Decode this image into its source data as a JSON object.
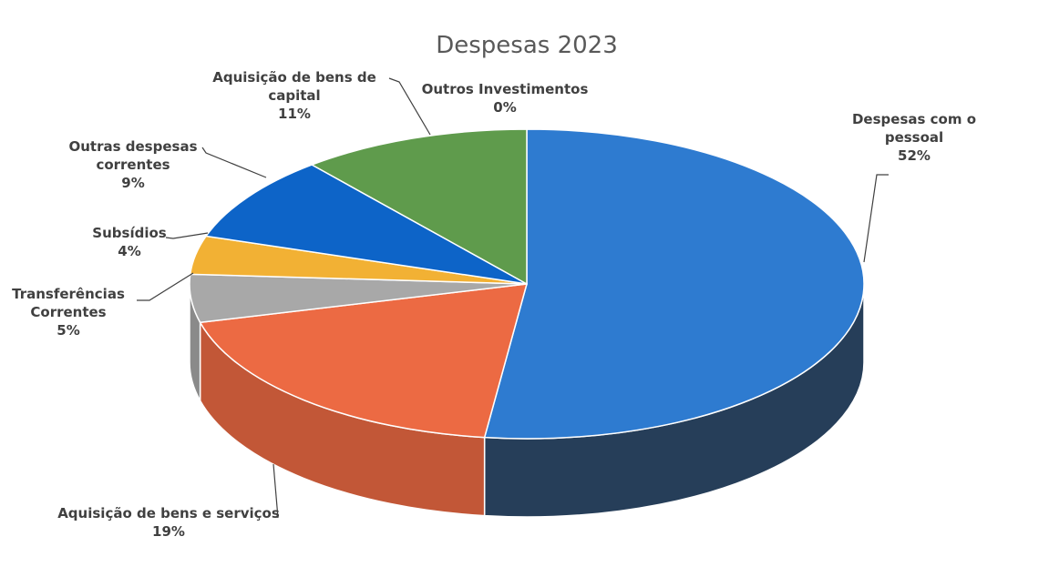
{
  "chart_data": {
    "type": "pie",
    "title": "Despesas 2023",
    "style": "3d",
    "slices": [
      {
        "name": "Despesas com o pessoal",
        "label_lines": [
          "Despesas com o",
          "pessoal"
        ],
        "pct_label": "52%",
        "value": 52,
        "color": "#2E7BD0"
      },
      {
        "name": "Aquisição de bens e serviços",
        "label_lines": [
          "Aquisição de bens e serviços"
        ],
        "pct_label": "19%",
        "value": 19,
        "color": "#EC6A43"
      },
      {
        "name": "Transferências Correntes",
        "label_lines": [
          "Transferências",
          "Correntes"
        ],
        "pct_label": "5%",
        "value": 5,
        "color": "#A8A8A8"
      },
      {
        "name": "Subsídios",
        "label_lines": [
          "Subsídios"
        ],
        "pct_label": "4%",
        "value": 4,
        "color": "#F2B134"
      },
      {
        "name": "Outras despesas correntes",
        "label_lines": [
          "Outras despesas",
          "correntes"
        ],
        "pct_label": "9%",
        "value": 9,
        "color": "#0D64C8"
      },
      {
        "name": "Aquisição de bens de capital",
        "label_lines": [
          "Aquisição de bens de",
          "capital"
        ],
        "pct_label": "11%",
        "value": 11,
        "color": "#5F9B4C"
      },
      {
        "name": "Outros Investimentos",
        "label_lines": [
          "Outros Investimentos"
        ],
        "pct_label": "0%",
        "value": 0,
        "color": "#3A6B2E"
      }
    ]
  }
}
